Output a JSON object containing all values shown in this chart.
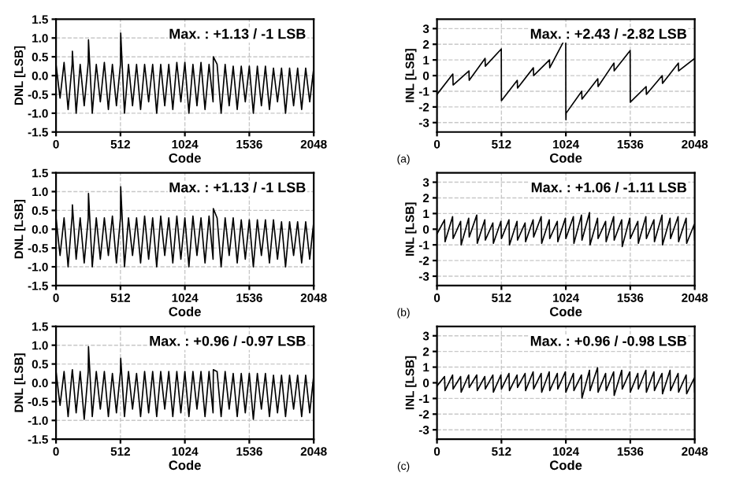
{
  "chart_data": [
    {
      "type": "line",
      "xlabel": "Code",
      "ylabel": "DNL [LSB]",
      "xlim": [
        0,
        2048
      ],
      "xticks": [
        0,
        512,
        1024,
        1536,
        2048
      ],
      "ylim": [
        -1.5,
        1.5
      ],
      "yticks": [
        {
          "value": -1.5,
          "label": "-1.5"
        },
        {
          "value": -1,
          "label": "-1.0"
        },
        {
          "value": -0.5,
          "label": "-0.5"
        },
        {
          "value": 0,
          "label": "0.0"
        },
        {
          "value": 0.5,
          "label": "0.5"
        },
        {
          "value": 1,
          "label": "1.0"
        },
        {
          "value": 1.5,
          "label": "1.5"
        }
      ],
      "grid": true,
      "annotations": [
        "Max. : +1.13 / -1 LSB"
      ],
      "series": [
        {
          "color": "#000000",
          "x": [
            0,
            32,
            64,
            96,
            128,
            130,
            160,
            192,
            224,
            256,
            258,
            288,
            320,
            352,
            384,
            416,
            448,
            480,
            512,
            514,
            544,
            576,
            608,
            640,
            672,
            704,
            736,
            768,
            800,
            832,
            864,
            896,
            928,
            960,
            992,
            1024,
            1056,
            1088,
            1120,
            1152,
            1184,
            1216,
            1248,
            1250,
            1280,
            1312,
            1344,
            1376,
            1408,
            1440,
            1472,
            1504,
            1536,
            1568,
            1600,
            1632,
            1664,
            1696,
            1728,
            1760,
            1792,
            1824,
            1856,
            1888,
            1920,
            1952,
            1984,
            2016,
            2048
          ],
          "values": [
            0.3,
            -0.6,
            0.35,
            -0.9,
            0.3,
            0.65,
            -1.0,
            0.3,
            -0.8,
            0.35,
            0.95,
            -1.0,
            0.3,
            -0.7,
            0.35,
            -0.9,
            0.3,
            -0.8,
            0.3,
            1.13,
            -1.0,
            0.3,
            -0.8,
            0.3,
            -0.9,
            0.3,
            -0.7,
            0.3,
            -1.0,
            0.3,
            -0.8,
            0.3,
            -0.9,
            0.35,
            -0.7,
            0.35,
            -1.0,
            0.3,
            -0.8,
            0.35,
            -0.9,
            0.3,
            -0.7,
            0.5,
            0.3,
            -1.0,
            0.3,
            -0.8,
            0.25,
            -0.9,
            0.25,
            -0.7,
            0.25,
            -1.0,
            0.25,
            -0.8,
            0.25,
            -0.9,
            0.2,
            -0.7,
            0.2,
            -1.0,
            0.2,
            -0.8,
            0.2,
            -0.9,
            0.2,
            -0.7,
            0.2
          ]
        }
      ]
    },
    {
      "type": "line",
      "xlabel": "Code",
      "ylabel": "INL [LSB]",
      "xlim": [
        0,
        2048
      ],
      "xticks": [
        0,
        512,
        1024,
        1536,
        2048
      ],
      "ylim": [
        -3.6,
        3.6
      ],
      "yticks": [
        -3,
        -2,
        -1,
        0,
        1,
        2,
        3
      ],
      "grid": true,
      "annotations": [
        "Max. : +2.43 / -2.82 LSB",
        "(a)"
      ],
      "series": [
        {
          "color": "#000000",
          "x": [
            0,
            126,
            128,
            254,
            256,
            382,
            384,
            511,
            512,
            638,
            640,
            766,
            768,
            894,
            896,
            1023,
            1024,
            1025,
            1026,
            1150,
            1152,
            1278,
            1280,
            1406,
            1408,
            1535,
            1536,
            1662,
            1664,
            1790,
            1792,
            1918,
            1920,
            2048
          ],
          "values": [
            -1.2,
            0.1,
            -0.6,
            0.3,
            -0.3,
            1.1,
            0.6,
            1.7,
            -1.6,
            -0.3,
            -0.8,
            0.5,
            0.0,
            1.0,
            0.5,
            2.43,
            -2.5,
            -2.82,
            -2.4,
            -1.0,
            -1.5,
            -0.2,
            -0.7,
            0.8,
            0.3,
            1.6,
            -1.7,
            -0.7,
            -1.2,
            0.0,
            -0.5,
            0.8,
            0.3,
            1.1
          ]
        }
      ]
    },
    {
      "type": "line",
      "xlabel": "Code",
      "ylabel": "DNL [LSB]",
      "xlim": [
        0,
        2048
      ],
      "xticks": [
        0,
        512,
        1024,
        1536,
        2048
      ],
      "ylim": [
        -1.5,
        1.5
      ],
      "yticks": [
        {
          "value": -1.5,
          "label": "-1.5"
        },
        {
          "value": -1,
          "label": "-1.0"
        },
        {
          "value": -0.5,
          "label": "-0.5"
        },
        {
          "value": 0,
          "label": "0.0"
        },
        {
          "value": 0.5,
          "label": "0.5"
        },
        {
          "value": 1,
          "label": "1.0"
        },
        {
          "value": 1.5,
          "label": "1.5"
        }
      ],
      "grid": true,
      "annotations": [
        "Max. : +1.13 / -1 LSB"
      ],
      "series": [
        {
          "color": "#000000",
          "x": [
            0,
            32,
            64,
            96,
            128,
            130,
            160,
            192,
            224,
            256,
            258,
            288,
            320,
            352,
            384,
            416,
            448,
            480,
            512,
            514,
            544,
            576,
            608,
            640,
            672,
            704,
            736,
            768,
            800,
            832,
            864,
            896,
            928,
            960,
            992,
            1024,
            1056,
            1088,
            1120,
            1152,
            1184,
            1216,
            1248,
            1250,
            1280,
            1312,
            1344,
            1376,
            1408,
            1440,
            1472,
            1504,
            1536,
            1568,
            1600,
            1632,
            1664,
            1696,
            1728,
            1760,
            1792,
            1824,
            1856,
            1888,
            1920,
            1952,
            1984,
            2016,
            2048
          ],
          "values": [
            0.3,
            -0.7,
            0.3,
            -1.0,
            0.35,
            0.65,
            -0.8,
            0.3,
            -0.9,
            0.3,
            0.95,
            -1.0,
            0.3,
            -0.8,
            0.3,
            -0.7,
            0.35,
            -0.9,
            0.3,
            1.13,
            -1.0,
            0.3,
            -0.7,
            0.3,
            -0.9,
            0.35,
            -0.8,
            0.3,
            -1.0,
            0.35,
            -0.7,
            0.3,
            -0.9,
            0.35,
            -0.8,
            0.3,
            -1.0,
            0.35,
            -0.7,
            0.3,
            -0.9,
            0.35,
            -0.8,
            0.55,
            0.3,
            -1.0,
            0.3,
            -0.7,
            0.3,
            -0.9,
            0.25,
            -0.8,
            0.25,
            -1.0,
            0.25,
            -0.7,
            0.25,
            -0.9,
            0.25,
            -0.8,
            0.2,
            -1.0,
            0.2,
            -0.7,
            0.2,
            -0.9,
            0.2,
            -0.8,
            0.2
          ]
        }
      ]
    },
    {
      "type": "line",
      "xlabel": "Code",
      "ylabel": "INL [LSB]",
      "xlim": [
        0,
        2048
      ],
      "xticks": [
        0,
        512,
        1024,
        1536,
        2048
      ],
      "ylim": [
        -3.6,
        3.6
      ],
      "yticks": [
        -3,
        -2,
        -1,
        0,
        1,
        2,
        3
      ],
      "grid": true,
      "annotations": [
        "Max. : +1.06 / -1.11 LSB",
        "(b)"
      ],
      "series": [
        {
          "color": "#000000",
          "x": [
            0,
            60,
            64,
            124,
            128,
            188,
            192,
            252,
            256,
            316,
            320,
            380,
            384,
            444,
            448,
            508,
            512,
            572,
            576,
            636,
            640,
            700,
            704,
            764,
            768,
            828,
            832,
            892,
            896,
            956,
            960,
            1020,
            1024,
            1084,
            1088,
            1148,
            1152,
            1212,
            1216,
            1276,
            1280,
            1340,
            1344,
            1404,
            1408,
            1468,
            1472,
            1532,
            1536,
            1596,
            1600,
            1660,
            1664,
            1724,
            1728,
            1788,
            1792,
            1852,
            1856,
            1916,
            1920,
            1980,
            1984,
            2044,
            2048
          ],
          "values": [
            -0.3,
            0.6,
            -0.8,
            0.8,
            -0.6,
            0.5,
            -1.0,
            0.7,
            -0.5,
            0.9,
            -0.9,
            0.6,
            -0.7,
            0.4,
            -0.9,
            0.5,
            -0.6,
            0.6,
            -1.0,
            0.5,
            -0.7,
            0.4,
            -0.8,
            0.6,
            -0.5,
            0.8,
            -0.9,
            0.6,
            -0.6,
            0.5,
            -0.8,
            0.7,
            -0.6,
            0.8,
            -0.9,
            0.9,
            -0.7,
            1.06,
            -1.0,
            0.7,
            -0.6,
            0.5,
            -0.8,
            0.8,
            -0.7,
            0.6,
            -1.11,
            0.7,
            -0.6,
            0.5,
            -0.9,
            0.8,
            -0.6,
            0.6,
            -0.8,
            0.9,
            -1.0,
            0.7,
            -0.6,
            0.8,
            -0.8,
            0.7,
            -0.9,
            0.3,
            -0.7
          ]
        }
      ]
    },
    {
      "type": "line",
      "xlabel": "Code",
      "ylabel": "DNL [LSB]",
      "xlim": [
        0,
        2048
      ],
      "xticks": [
        0,
        512,
        1024,
        1536,
        2048
      ],
      "ylim": [
        -1.5,
        1.5
      ],
      "yticks": [
        {
          "value": -1.5,
          "label": "-1.5"
        },
        {
          "value": -1,
          "label": "-1.0"
        },
        {
          "value": -0.5,
          "label": "-0.5"
        },
        {
          "value": 0,
          "label": "0.0"
        },
        {
          "value": 0.5,
          "label": "0.5"
        },
        {
          "value": 1,
          "label": "1.0"
        },
        {
          "value": 1.5,
          "label": "1.5"
        }
      ],
      "grid": true,
      "annotations": [
        "Max. : +0.96 / -0.97 LSB"
      ],
      "series": [
        {
          "color": "#000000",
          "x": [
            0,
            32,
            64,
            96,
            128,
            130,
            160,
            192,
            224,
            256,
            258,
            288,
            320,
            352,
            384,
            416,
            448,
            480,
            512,
            514,
            544,
            576,
            608,
            640,
            672,
            704,
            736,
            768,
            800,
            832,
            864,
            896,
            928,
            960,
            992,
            1024,
            1056,
            1088,
            1120,
            1152,
            1184,
            1216,
            1248,
            1250,
            1280,
            1312,
            1344,
            1376,
            1408,
            1440,
            1472,
            1504,
            1536,
            1568,
            1600,
            1632,
            1664,
            1696,
            1728,
            1760,
            1792,
            1824,
            1856,
            1888,
            1920,
            1952,
            1984,
            2016,
            2048
          ],
          "values": [
            0.3,
            -0.6,
            0.3,
            -0.9,
            0.3,
            0.35,
            -0.8,
            0.3,
            -0.97,
            0.3,
            0.96,
            -0.9,
            0.3,
            -0.7,
            0.3,
            -0.9,
            0.25,
            -0.8,
            0.3,
            0.65,
            -0.9,
            0.3,
            -0.7,
            0.25,
            -0.9,
            0.3,
            -0.8,
            0.3,
            -0.9,
            0.3,
            -0.7,
            0.3,
            -0.9,
            0.3,
            -0.8,
            0.3,
            -0.9,
            0.3,
            -0.7,
            0.3,
            -0.9,
            0.3,
            -0.8,
            0.35,
            0.3,
            -0.9,
            0.3,
            -0.7,
            0.25,
            -0.9,
            0.25,
            -0.8,
            0.25,
            -0.97,
            0.25,
            -0.7,
            0.25,
            -0.9,
            0.2,
            -0.8,
            0.2,
            -0.9,
            0.2,
            -0.7,
            0.2,
            -0.9,
            0.2,
            -0.8,
            0.2
          ]
        }
      ]
    },
    {
      "type": "line",
      "xlabel": "Code",
      "ylabel": "INL [LSB]",
      "xlim": [
        0,
        2048
      ],
      "xticks": [
        0,
        512,
        1024,
        1536,
        2048
      ],
      "ylim": [
        -3.6,
        3.6
      ],
      "yticks": [
        -3,
        -2,
        -1,
        0,
        1,
        2,
        3
      ],
      "grid": true,
      "annotations": [
        "Max. : +0.96 / -0.98 LSB",
        "(c)"
      ],
      "series": [
        {
          "color": "#000000",
          "x": [
            0,
            60,
            64,
            124,
            128,
            188,
            192,
            252,
            256,
            316,
            320,
            380,
            384,
            444,
            448,
            508,
            512,
            572,
            576,
            636,
            640,
            700,
            704,
            764,
            768,
            828,
            832,
            892,
            896,
            956,
            960,
            1020,
            1024,
            1084,
            1088,
            1148,
            1152,
            1212,
            1216,
            1276,
            1280,
            1340,
            1344,
            1404,
            1408,
            1468,
            1472,
            1532,
            1536,
            1596,
            1600,
            1660,
            1664,
            1724,
            1728,
            1788,
            1792,
            1852,
            1856,
            1916,
            1920,
            1980,
            1984,
            2044,
            2048
          ],
          "values": [
            -0.2,
            0.4,
            -0.5,
            0.5,
            -0.4,
            0.4,
            -0.6,
            0.5,
            -0.3,
            0.5,
            -0.5,
            0.4,
            -0.4,
            0.5,
            -0.6,
            0.5,
            -0.4,
            0.6,
            -0.5,
            0.5,
            -0.3,
            0.6,
            -0.5,
            0.7,
            -0.4,
            0.6,
            -0.6,
            0.7,
            -0.5,
            0.6,
            -0.4,
            0.7,
            -0.6,
            0.6,
            -0.5,
            0.5,
            -0.98,
            0.8,
            -0.5,
            0.96,
            -0.6,
            0.6,
            -0.5,
            0.7,
            -0.8,
            0.8,
            -0.4,
            0.7,
            -0.6,
            0.6,
            -0.4,
            0.8,
            -0.6,
            0.7,
            -0.5,
            0.6,
            -0.7,
            0.8,
            -0.5,
            0.6,
            -0.6,
            0.5,
            -0.7,
            0.3,
            -0.6
          ]
        }
      ]
    }
  ]
}
